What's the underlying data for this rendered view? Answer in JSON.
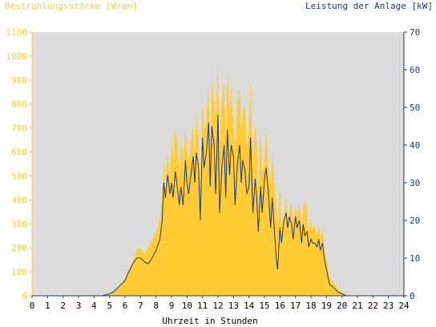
{
  "chart_data": {
    "type": "area",
    "left_axis_title": "Bestrahlungsstärke [W/qm]",
    "right_axis_title": "Leistung der Anlage [kW]",
    "xlabel": "Uhrzeit in Stunden",
    "x_ticks": [
      "0",
      "1",
      "2",
      "3",
      "4",
      "5",
      "6",
      "7",
      "8",
      "9",
      "10",
      "11",
      "12",
      "13",
      "14",
      "15",
      "16",
      "17",
      "18",
      "19",
      "20",
      "21",
      "22",
      "23",
      "24"
    ],
    "left_ticks": [
      "0",
      "100",
      "200",
      "300",
      "400",
      "500",
      "600",
      "700",
      "800",
      "900",
      "1000",
      "1100"
    ],
    "right_ticks": [
      "0",
      "10",
      "20",
      "30",
      "40",
      "50",
      "60",
      "70"
    ],
    "xlim": [
      0,
      24
    ],
    "left_ylim": [
      0,
      1100
    ],
    "right_ylim": [
      0,
      70
    ],
    "grid": false,
    "colors": {
      "plot_background": "#dcdcdc",
      "irradiance_fill": "#ffcc33",
      "power_line": "#1f3a6e",
      "left_axis": "#ffcc33",
      "right_axis": "#1f3a6e"
    },
    "series": [
      {
        "axis": "left",
        "style": "area",
        "x": [
          0,
          4.5,
          5,
          5.25,
          5.5,
          5.75,
          6,
          6.2,
          6.5,
          6.75,
          7,
          7.25,
          7.5,
          7.75,
          8,
          8.25,
          8.4,
          8.5,
          8.6,
          8.75,
          8.9,
          9,
          9.1,
          9.25,
          9.4,
          9.5,
          9.6,
          9.75,
          9.9,
          10,
          10.1,
          10.25,
          10.4,
          10.5,
          10.6,
          10.75,
          10.85,
          11,
          11.1,
          11.25,
          11.4,
          11.5,
          11.6,
          11.75,
          11.85,
          12,
          12.1,
          12.25,
          12.4,
          12.5,
          12.6,
          12.75,
          12.85,
          13,
          13.1,
          13.25,
          13.4,
          13.5,
          13.6,
          13.75,
          13.85,
          14,
          14.1,
          14.25,
          14.4,
          14.5,
          14.6,
          14.75,
          14.85,
          15,
          15.1,
          15.25,
          15.4,
          15.5,
          15.6,
          15.75,
          15.85,
          16,
          16.1,
          16.25,
          16.4,
          16.5,
          16.6,
          16.75,
          16.85,
          17,
          17.1,
          17.25,
          17.4,
          17.5,
          17.6,
          17.75,
          17.85,
          18,
          18.1,
          18.25,
          18.4,
          18.5,
          18.6,
          18.75,
          18.85,
          19,
          19.2,
          19.5,
          19.75,
          20,
          20.25,
          20.5,
          24
        ],
        "y": [
          0,
          0,
          5,
          12,
          25,
          50,
          75,
          100,
          140,
          190,
          200,
          175,
          200,
          230,
          270,
          310,
          400,
          560,
          460,
          600,
          480,
          680,
          560,
          700,
          620,
          500,
          650,
          560,
          700,
          620,
          560,
          640,
          720,
          560,
          760,
          650,
          440,
          820,
          680,
          740,
          870,
          560,
          900,
          800,
          740,
          960,
          620,
          820,
          900,
          600,
          950,
          780,
          880,
          720,
          600,
          800,
          870,
          680,
          760,
          800,
          620,
          700,
          900,
          560,
          720,
          640,
          420,
          700,
          500,
          560,
          700,
          540,
          460,
          600,
          500,
          380,
          300,
          460,
          280,
          340,
          420,
          300,
          350,
          380,
          300,
          370,
          340,
          380,
          300,
          350,
          400,
          360,
          260,
          320,
          280,
          290,
          250,
          300,
          230,
          280,
          200,
          160,
          80,
          50,
          30,
          15,
          5,
          0,
          0
        ]
      },
      {
        "axis": "right",
        "style": "line",
        "x": [
          0,
          4.5,
          5,
          5.25,
          5.5,
          5.75,
          6,
          6.2,
          6.5,
          6.75,
          7,
          7.25,
          7.5,
          7.75,
          8,
          8.25,
          8.4,
          8.5,
          8.6,
          8.75,
          8.9,
          9,
          9.1,
          9.25,
          9.4,
          9.5,
          9.6,
          9.75,
          9.9,
          10,
          10.1,
          10.25,
          10.4,
          10.5,
          10.6,
          10.75,
          10.85,
          11,
          11.1,
          11.25,
          11.4,
          11.5,
          11.6,
          11.75,
          11.85,
          12,
          12.1,
          12.25,
          12.4,
          12.5,
          12.6,
          12.75,
          12.85,
          13,
          13.1,
          13.25,
          13.4,
          13.5,
          13.6,
          13.75,
          13.85,
          14,
          14.1,
          14.25,
          14.4,
          14.5,
          14.6,
          14.75,
          14.85,
          15,
          15.1,
          15.25,
          15.4,
          15.5,
          15.6,
          15.75,
          15.85,
          16,
          16.1,
          16.25,
          16.4,
          16.5,
          16.6,
          16.75,
          16.85,
          17,
          17.1,
          17.25,
          17.4,
          17.5,
          17.6,
          17.75,
          17.85,
          18,
          18.1,
          18.25,
          18.4,
          18.5,
          18.6,
          18.75,
          18.85,
          19,
          19.2,
          19.5,
          19.75,
          20,
          20.25,
          20.5,
          24
        ],
        "y": [
          0,
          0,
          0.5,
          1,
          2,
          3,
          4,
          6,
          8.5,
          10,
          10,
          9,
          8.5,
          10,
          12,
          15,
          20,
          30,
          26,
          32,
          27,
          30,
          26,
          33,
          28,
          24,
          29,
          24,
          36,
          30,
          27,
          32,
          37,
          30,
          38,
          34,
          20,
          42,
          34,
          38,
          46,
          29,
          45,
          40,
          27,
          48,
          22,
          34,
          40,
          26,
          44,
          32,
          40,
          37,
          24,
          35,
          40,
          30,
          36,
          33,
          27,
          29,
          42,
          22,
          31,
          26,
          17,
          29,
          22,
          31,
          34,
          28,
          18,
          26,
          20,
          10,
          7,
          18,
          14,
          20,
          22,
          18,
          21,
          19,
          15,
          21,
          18,
          20,
          14,
          19,
          16,
          17,
          13,
          15,
          14,
          14,
          13,
          15,
          12,
          14,
          10,
          7,
          3,
          2,
          1,
          0.5,
          0,
          0,
          0
        ]
      }
    ]
  }
}
